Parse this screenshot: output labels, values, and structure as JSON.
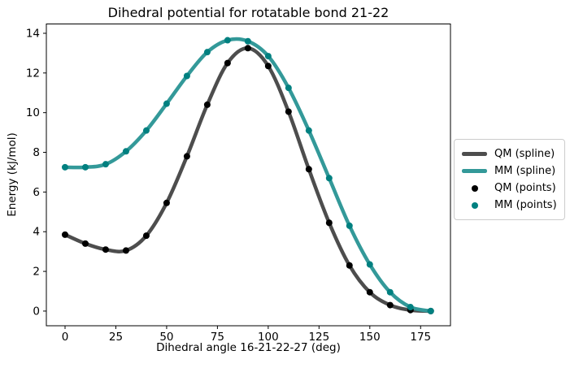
{
  "chart_data": {
    "type": "line",
    "title": "Dihedral potential for rotatable bond 21-22",
    "xlabel": "Dihedral angle 16-21-22-27 (deg)",
    "ylabel": "Energy (kJ/mol)",
    "x": [
      0,
      10,
      20,
      30,
      40,
      50,
      60,
      70,
      80,
      90,
      100,
      110,
      120,
      130,
      140,
      150,
      160,
      170,
      180
    ],
    "series": [
      {
        "name": "QM (spline)",
        "style": "spline",
        "color": "#4d4d4d",
        "values": [
          3.85,
          3.4,
          3.1,
          3.05,
          3.8,
          5.45,
          7.8,
          10.4,
          12.5,
          13.25,
          12.35,
          10.05,
          7.15,
          4.45,
          2.3,
          0.95,
          0.3,
          0.05,
          0.0
        ]
      },
      {
        "name": "MM (spline)",
        "style": "spline",
        "color": "#339999",
        "values": [
          7.25,
          7.25,
          7.4,
          8.05,
          9.1,
          10.45,
          11.85,
          13.05,
          13.65,
          13.6,
          12.85,
          11.25,
          9.1,
          6.7,
          4.3,
          2.35,
          0.95,
          0.2,
          0.0
        ]
      },
      {
        "name": "QM (points)",
        "style": "scatter",
        "color": "#000000",
        "values": [
          3.85,
          3.4,
          3.1,
          3.05,
          3.8,
          5.45,
          7.8,
          10.4,
          12.5,
          13.25,
          12.35,
          10.05,
          7.15,
          4.45,
          2.3,
          0.95,
          0.3,
          0.05,
          0.0
        ]
      },
      {
        "name": "MM (points)",
        "style": "scatter",
        "color": "#008080",
        "values": [
          7.25,
          7.25,
          7.4,
          8.05,
          9.1,
          10.45,
          11.85,
          13.05,
          13.65,
          13.6,
          12.85,
          11.25,
          9.1,
          6.7,
          4.3,
          2.35,
          0.95,
          0.2,
          0.0
        ]
      }
    ],
    "xticks": [
      0,
      25,
      50,
      75,
      100,
      125,
      150,
      175
    ],
    "yticks": [
      0,
      2,
      4,
      6,
      8,
      10,
      12,
      14
    ],
    "xlim": [
      -9.2,
      189.7
    ],
    "ylim": [
      -0.74,
      14.47
    ],
    "grid": false,
    "legend_position": "outside center right",
    "legend_entries": [
      "QM (spline)",
      "MM (spline)",
      "QM (points)",
      "MM (points)"
    ],
    "axes_color": "#000000",
    "background_color": "#ffffff"
  }
}
